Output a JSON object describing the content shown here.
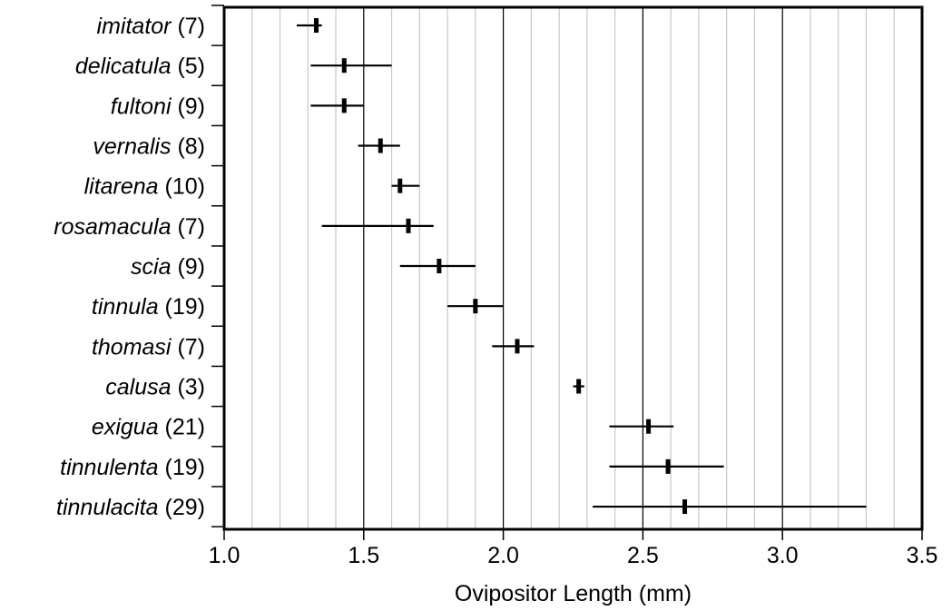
{
  "chart_data": {
    "type": "error-bar",
    "xlabel": "Ovipositor Length (mm)",
    "xlim": [
      1.0,
      3.5
    ],
    "x_ticks": [
      "1.0",
      "1.5",
      "2.0",
      "2.5",
      "3.0",
      "3.5"
    ],
    "minor_grid_step": 0.1,
    "grid": true,
    "categories": [
      {
        "name": "imitator",
        "n": "(7)",
        "mean": 1.33,
        "min": 1.26,
        "max": 1.35
      },
      {
        "name": "delicatula",
        "n": "(5)",
        "mean": 1.43,
        "min": 1.31,
        "max": 1.6
      },
      {
        "name": "fultoni",
        "n": "(9)",
        "mean": 1.43,
        "min": 1.31,
        "max": 1.5
      },
      {
        "name": "vernalis",
        "n": "(8)",
        "mean": 1.56,
        "min": 1.48,
        "max": 1.63
      },
      {
        "name": "litarena",
        "n": "(10)",
        "mean": 1.63,
        "min": 1.6,
        "max": 1.7
      },
      {
        "name": "rosamacula",
        "n": "(7)",
        "mean": 1.66,
        "min": 1.35,
        "max": 1.75
      },
      {
        "name": "scia",
        "n": "(9)",
        "mean": 1.77,
        "min": 1.63,
        "max": 1.9
      },
      {
        "name": "tinnula",
        "n": "(19)",
        "mean": 1.9,
        "min": 1.8,
        "max": 2.0
      },
      {
        "name": "thomasi",
        "n": "(7)",
        "mean": 2.05,
        "min": 1.96,
        "max": 2.11
      },
      {
        "name": "calusa",
        "n": "(3)",
        "mean": 2.27,
        "min": 2.25,
        "max": 2.29
      },
      {
        "name": "exigua",
        "n": "(21)",
        "mean": 2.52,
        "min": 2.38,
        "max": 2.61
      },
      {
        "name": "tinnulenta",
        "n": "(19)",
        "mean": 2.59,
        "min": 2.38,
        "max": 2.79
      },
      {
        "name": "tinnulacita",
        "n": "(29)",
        "mean": 2.65,
        "min": 2.32,
        "max": 3.3
      }
    ]
  }
}
